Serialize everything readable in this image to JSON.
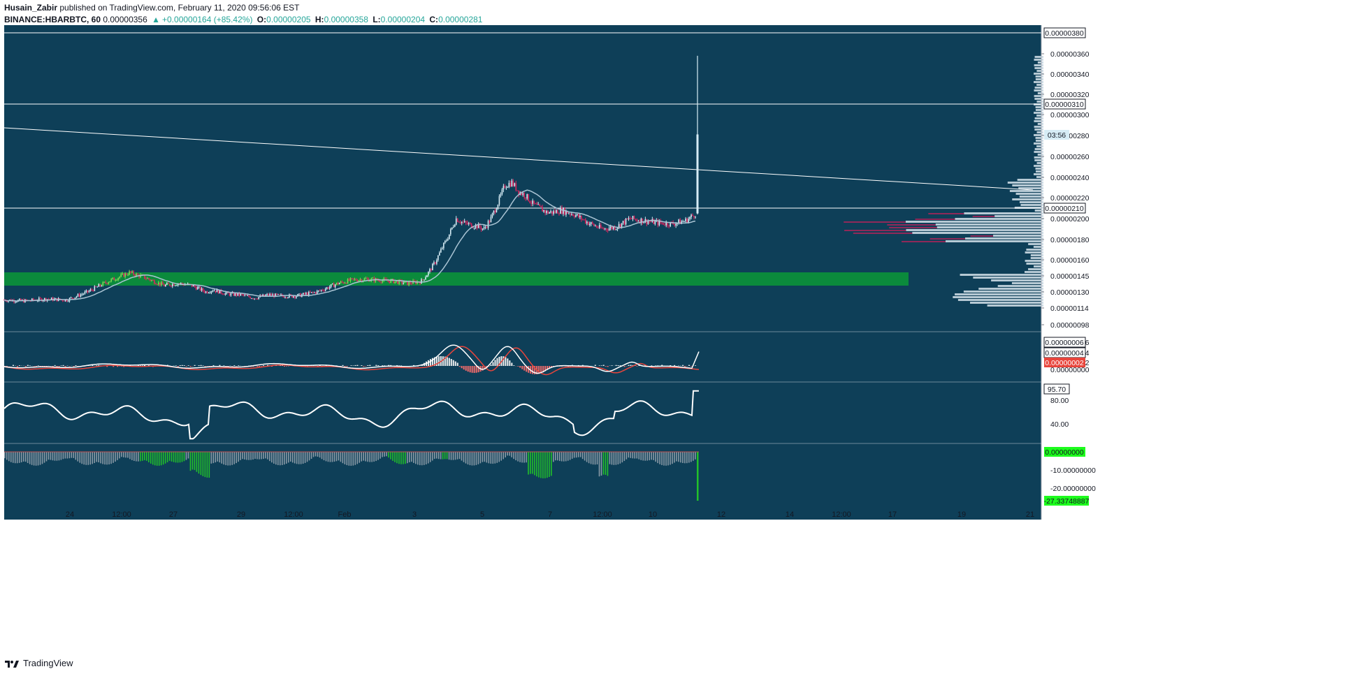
{
  "header": {
    "author": "Husain_Zabir",
    "published_text": "published on TradingView.com, February 11, 2020 09:56:06 EST",
    "symbol": "BINANCE:HBARBTC, 60",
    "last": "0.00000356",
    "change": "+0.00000164 (+85.42%)",
    "o_label": "O:",
    "o": "0.00000205",
    "h_label": "H:",
    "h": "0.00000358",
    "l_label": "L:",
    "l": "0.00000204",
    "c_label": "C:",
    "c": "0.00000281"
  },
  "footer": {
    "brand": "TradingView"
  },
  "colors": {
    "panel_bg": "#0e3f58",
    "up_candle": "#d6ecf5",
    "down_candle": "#e0245e",
    "zone_green": "#0b8a3c",
    "ma_line": "#aac4d4",
    "macd_line": "#ffffff",
    "signal_line": "#e8453c",
    "rsi_line": "#ffffff",
    "osc_hist": "#8a9aa6",
    "osc_hist_green": "#22c02a",
    "accent_green": "#1dfc1d"
  },
  "chart_data": [
    {
      "type": "line",
      "title": "BINANCE:HBARBTC, 60",
      "x_tick_labels": [
        "24",
        "12:00",
        "27",
        "29",
        "12:00",
        "Feb",
        "3",
        "5",
        "7",
        "12:00",
        "10",
        "12",
        "14",
        "12:00",
        "17",
        "19",
        "21"
      ],
      "y_tick_labels": [
        "0.00000360",
        "0.00000340",
        "0.00000320",
        "0.00000300",
        "0.00000280",
        "0.00000260",
        "0.00000240",
        "0.00000220",
        "0.00000200",
        "0.00000180",
        "0.00000160",
        "0.00000145",
        "0.00000130",
        "0.00000114",
        "0.00000098"
      ],
      "ylim": [
        9e-07,
        3.95e-06
      ],
      "series": [
        {
          "values_index": [
            0,
            30,
            60,
            90,
            120,
            150,
            180,
            200,
            215,
            230,
            250,
            270,
            290,
            300,
            320,
            340,
            360,
            380,
            400,
            420,
            450,
            480,
            500,
            520,
            540,
            560,
            580,
            600,
            610,
            620,
            630,
            640,
            650,
            660,
            670,
            680,
            690,
            700,
            710,
            720,
            730,
            740,
            750,
            760,
            770,
            780,
            790,
            800,
            820,
            840,
            860,
            880,
            900,
            920,
            940,
            960,
            980,
            995,
            997,
            999
          ],
          "values": [
            1.22e-06,
            1.21e-06,
            1.23e-06,
            1.22e-06,
            1.3e-06,
            1.4e-06,
            1.48e-06,
            1.44e-06,
            1.4e-06,
            1.36e-06,
            1.38e-06,
            1.36e-06,
            1.3e-06,
            1.32e-06,
            1.28e-06,
            1.27e-06,
            1.24e-06,
            1.27e-06,
            1.26e-06,
            1.26e-06,
            1.3e-06,
            1.38e-06,
            1.41e-06,
            1.42e-06,
            1.41e-06,
            1.4e-06,
            1.38e-06,
            1.4e-06,
            1.48e-06,
            1.58e-06,
            1.72e-06,
            1.85e-06,
            2e-06,
            1.96e-06,
            1.94e-06,
            1.93e-06,
            1.9e-06,
            2e-06,
            2.15e-06,
            2.32e-06,
            2.35e-06,
            2.26e-06,
            2.22e-06,
            2.14e-06,
            2.1e-06,
            2.06e-06,
            2.06e-06,
            2.08e-06,
            2.04e-06,
            1.96e-06,
            1.9e-06,
            1.92e-06,
            2e-06,
            1.98e-06,
            1.96e-06,
            1.95e-06,
            1.98e-06,
            2.05e-06,
            2.3e-06,
            2.81e-06
          ]
        }
      ],
      "wick_high": 3.58e-06,
      "horizontal_levels": [
        3.8e-06,
        3.1e-06,
        2.1e-06
      ],
      "level_labels": [
        "0.00000380",
        "0.00000310",
        "0.00000210"
      ],
      "countdown": "03:56",
      "support_zone": [
        1.36e-06,
        1.48e-06
      ]
    },
    {
      "type": "line",
      "y_tick_labels": [
        "0.00000006",
        "0.00000004",
        "0.00000002",
        "0.00000000"
      ],
      "last_labels": [
        "0.00000006",
        "0.00000004",
        "0.00000002"
      ]
    },
    {
      "type": "line",
      "y_tick_labels": [
        "80.00",
        "40.00"
      ],
      "ylim": [
        10,
        100
      ],
      "last": "95.70"
    },
    {
      "type": "bar",
      "y_tick_labels": [
        "0.00000000",
        "-10.00000000",
        "-20.00000000"
      ],
      "last": "-27.33748887"
    }
  ]
}
